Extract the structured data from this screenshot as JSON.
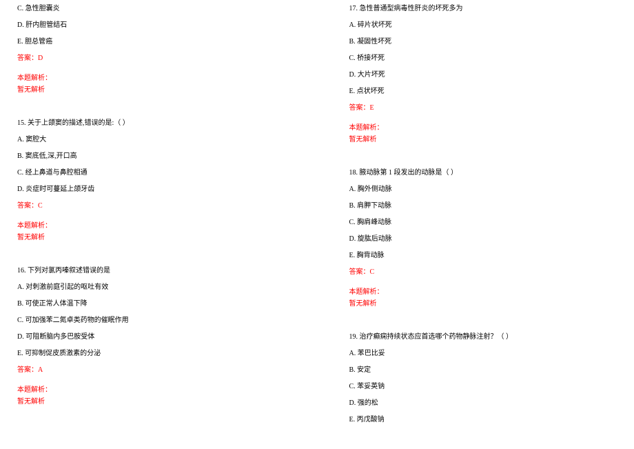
{
  "colors": {
    "text": "#000000",
    "answer": "#ff0000",
    "background": "#ffffff"
  },
  "typography": {
    "font_family": "SimSun",
    "font_size_pt": 8
  },
  "left_column": {
    "q14_tail": {
      "opt_c": "C. 急性胆囊炎",
      "opt_d": "D. 肝内胆管结石",
      "opt_e": "E. 胆总管癌",
      "answer": "答案：D",
      "explain_header": "本题解析：",
      "explain_body": "暂无解析"
    },
    "q15": {
      "stem": "15. 关于上颌窦的描述,错误的是:（ ）",
      "opt_a": "A. 窦腔大",
      "opt_b": "B. 窦底低,深,开口高",
      "opt_c": "C. 经上鼻道与鼻腔相通",
      "opt_d": "D. 炎症时可蔓延上颌牙齿",
      "answer": "答案：C",
      "explain_header": "本题解析：",
      "explain_body": "暂无解析"
    },
    "q16": {
      "stem": "16. 下列对氯丙嗪叙述错误的是",
      "opt_a": "A. 对刺激前庭引起的呕吐有效",
      "opt_b": "B. 可使正常人体温下降",
      "opt_c": "C. 可加强苯二氮卓类药物的催眠作用",
      "opt_d": "D. 可阻断脑内多巴胺受体",
      "opt_e": "E. 可抑制促皮质激素的分泌",
      "answer": "答案：A",
      "explain_header": "本题解析：",
      "explain_body": "暂无解析"
    }
  },
  "right_column": {
    "q17": {
      "stem": "17. 急性普通型病毒性肝炎的坏死多为",
      "opt_a": "A. 碎片状坏死",
      "opt_b": "B. 凝固性坏死",
      "opt_c": "C. 桥接坏死",
      "opt_d": "D. 大片坏死",
      "opt_e": "E. 点状坏死",
      "answer": "答案：E",
      "explain_header": "本题解析：",
      "explain_body": "暂无解析"
    },
    "q18": {
      "stem": "18. 腋动脉第 1 段发出的动脉是（ ）",
      "opt_a": "A. 胸外侧动脉",
      "opt_b": "B. 肩胛下动脉",
      "opt_c": "C. 胸肩峰动脉",
      "opt_d": "D. 旋肱后动脉",
      "opt_e": "E. 胸背动脉",
      "answer": "答案：C",
      "explain_header": "本题解析：",
      "explain_body": "暂无解析"
    },
    "q19": {
      "stem": "19. 治疗癫痫持续状态应首选哪个药物静脉注射？（ ）",
      "opt_a": "A. 苯巴比妥",
      "opt_b": "B. 安定",
      "opt_c": "C. 苯妥英钠",
      "opt_d": "D. 强的松",
      "opt_e": "E. 丙戊酸钠"
    }
  }
}
